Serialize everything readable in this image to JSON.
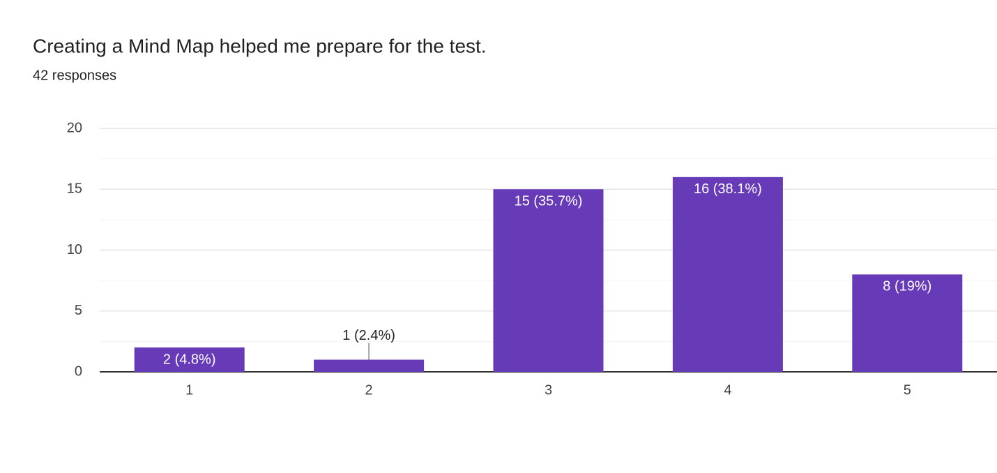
{
  "chart_data": {
    "type": "bar",
    "title": "Creating a Mind Map helped me prepare for the test.",
    "subtitle": "42 responses",
    "categories": [
      "1",
      "2",
      "3",
      "4",
      "5"
    ],
    "values": [
      2,
      1,
      15,
      16,
      8
    ],
    "value_labels": [
      "2 (4.8%)",
      "1 (2.4%)",
      "15 (35.7%)",
      "16 (38.1%)",
      "8 (19%)"
    ],
    "color": "#673ab7",
    "ylim": [
      0,
      20
    ],
    "yticks": [
      0,
      5,
      10,
      15,
      20
    ],
    "minor_yticks": [
      2.5,
      7.5,
      12.5,
      17.5
    ],
    "grid": true
  }
}
